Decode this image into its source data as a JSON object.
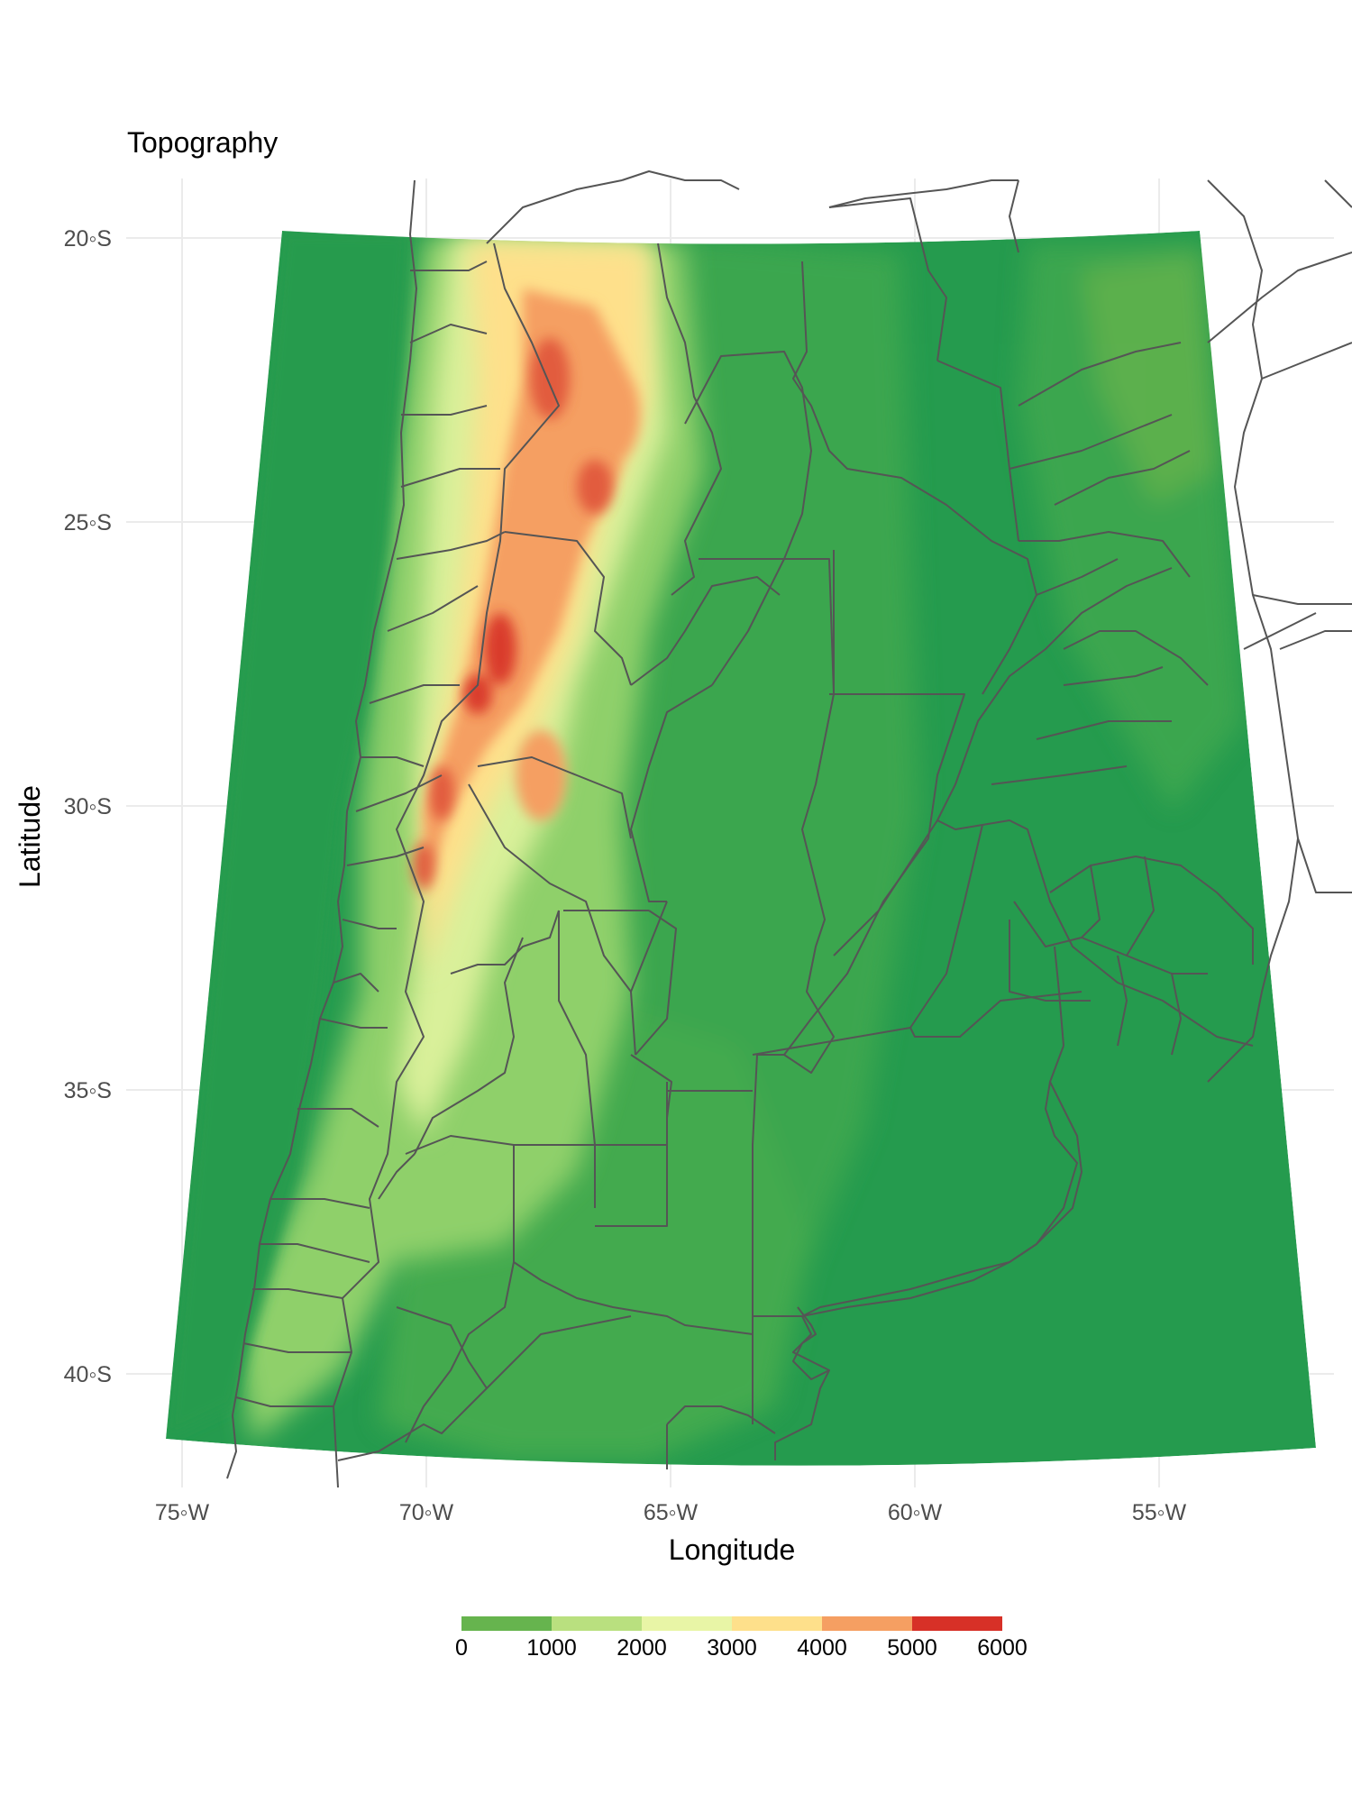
{
  "title": "Topography",
  "axes": {
    "xlabel": "Longitude",
    "ylabel": "Latitude",
    "x_ticks": [
      {
        "value": -75,
        "label": "75◦W"
      },
      {
        "value": -70,
        "label": "70◦W"
      },
      {
        "value": -65,
        "label": "65◦W"
      },
      {
        "value": -60,
        "label": "60◦W"
      },
      {
        "value": -55,
        "label": "55◦W"
      }
    ],
    "y_ticks": [
      {
        "value": -20,
        "label": "20◦S"
      },
      {
        "value": -25,
        "label": "25◦S"
      },
      {
        "value": -30,
        "label": "30◦S"
      },
      {
        "value": -35,
        "label": "35◦S"
      },
      {
        "value": -40,
        "label": "40◦S"
      }
    ],
    "grid": true
  },
  "legend": {
    "position": "bottom",
    "bins": [
      {
        "from": 0,
        "to": 1000,
        "color": "#66b44e"
      },
      {
        "from": 1000,
        "to": 2000,
        "color": "#b9e07f"
      },
      {
        "from": 2000,
        "to": 3000,
        "color": "#e8f5a6"
      },
      {
        "from": 3000,
        "to": 4000,
        "color": "#fee08b"
      },
      {
        "from": 4000,
        "to": 5000,
        "color": "#f59f62"
      },
      {
        "from": 5000,
        "to": 6000,
        "color": "#d73027"
      }
    ],
    "labels": [
      "0",
      "1000",
      "2000",
      "3000",
      "4000",
      "5000",
      "6000"
    ]
  },
  "colors": {
    "lowland": "#259b4e",
    "border": "#555555",
    "grid": "#ebebeb"
  }
}
